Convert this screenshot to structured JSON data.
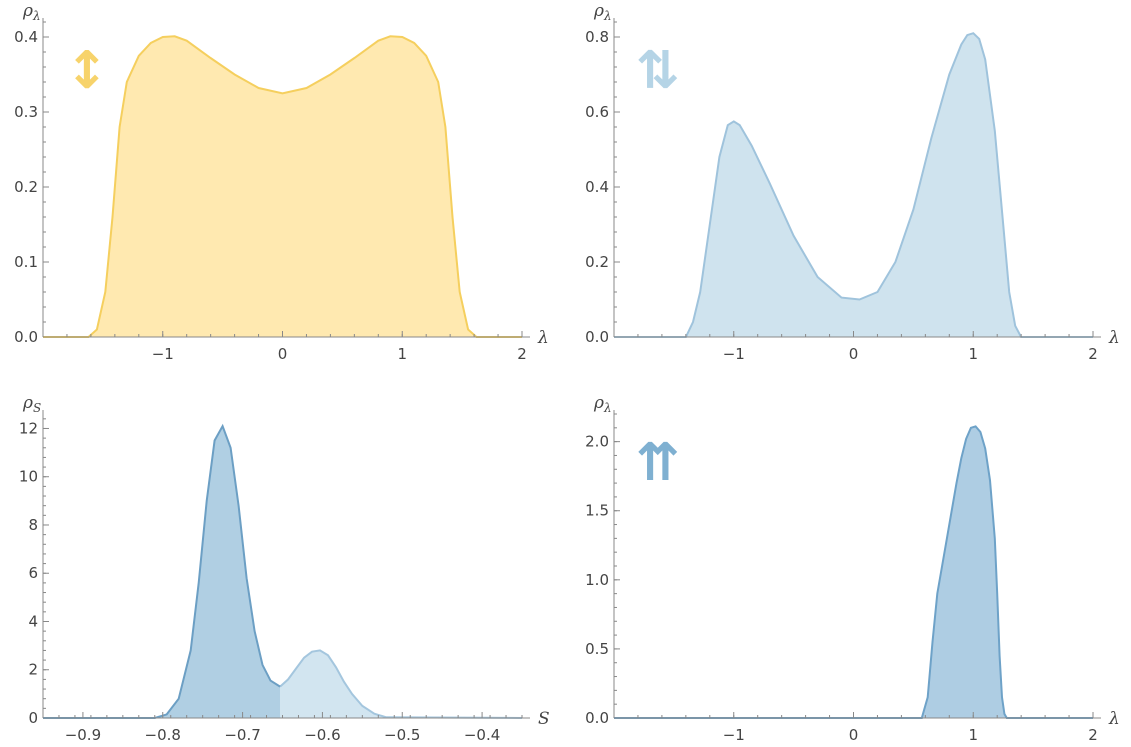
{
  "chart_data": [
    {
      "type": "area",
      "panel": "top-left",
      "xlabel": "λ",
      "ylabel": "ρ",
      "ylabel_sub": "λ",
      "xlim": [
        -2,
        2
      ],
      "ylim": [
        0,
        0.42
      ],
      "xticks": [
        -1,
        0,
        1,
        2
      ],
      "xtick_labels": [
        "−1",
        "0",
        "1",
        "2"
      ],
      "yticks": [
        0,
        0.1,
        0.2,
        0.3,
        0.4
      ],
      "ytick_labels": [
        "0.0",
        "0.1",
        "0.2",
        "0.3",
        "0.4"
      ],
      "legend_symbol": "↕",
      "legend_color": "#f7d36b",
      "fill_color": "#ffe9b0",
      "line_color": "#f5cf5e",
      "series": [
        {
          "x": [
            -2,
            -1.62,
            -1.55,
            -1.48,
            -1.42,
            -1.36,
            -1.3,
            -1.2,
            -1.1,
            -1.0,
            -0.9,
            -0.8,
            -0.6,
            -0.4,
            -0.2,
            0,
            0.2,
            0.4,
            0.6,
            0.8,
            0.9,
            1.0,
            1.1,
            1.2,
            1.3,
            1.36,
            1.42,
            1.48,
            1.55,
            1.62,
            2
          ],
          "values": [
            0,
            0,
            0.01,
            0.06,
            0.16,
            0.28,
            0.34,
            0.375,
            0.392,
            0.4,
            0.401,
            0.395,
            0.372,
            0.35,
            0.332,
            0.325,
            0.332,
            0.35,
            0.372,
            0.395,
            0.401,
            0.4,
            0.392,
            0.375,
            0.34,
            0.28,
            0.16,
            0.06,
            0.01,
            0,
            0
          ]
        }
      ]
    },
    {
      "type": "area",
      "panel": "top-right",
      "xlabel": "λ",
      "ylabel": "ρ",
      "ylabel_sub": "λ",
      "xlim": [
        -2,
        2
      ],
      "ylim": [
        0,
        0.84
      ],
      "xticks": [
        -1,
        0,
        1,
        2
      ],
      "xtick_labels": [
        "−1",
        "0",
        "1",
        "2"
      ],
      "yticks": [
        0,
        0.2,
        0.4,
        0.6,
        0.8
      ],
      "ytick_labels": [
        "0.0",
        "0.2",
        "0.4",
        "0.6",
        "0.8"
      ],
      "legend_symbol": "⇅",
      "legend_color": "#b5d4e6",
      "fill_color": "#cfe3ee",
      "line_color": "#9fc3dc",
      "series": [
        {
          "x": [
            -2,
            -1.4,
            -1.34,
            -1.28,
            -1.2,
            -1.12,
            -1.05,
            -1.0,
            -0.95,
            -0.85,
            -0.7,
            -0.5,
            -0.3,
            -0.1,
            0.05,
            0.2,
            0.35,
            0.5,
            0.65,
            0.8,
            0.9,
            0.95,
            1.0,
            1.05,
            1.1,
            1.18,
            1.25,
            1.3,
            1.35,
            1.4,
            2
          ],
          "values": [
            0,
            0,
            0.04,
            0.12,
            0.3,
            0.48,
            0.565,
            0.575,
            0.565,
            0.51,
            0.41,
            0.27,
            0.16,
            0.105,
            0.1,
            0.12,
            0.2,
            0.34,
            0.53,
            0.7,
            0.78,
            0.805,
            0.81,
            0.795,
            0.74,
            0.55,
            0.3,
            0.12,
            0.03,
            0,
            0
          ]
        }
      ]
    },
    {
      "type": "area",
      "panel": "bottom-left",
      "xlabel": "S",
      "ylabel": "ρ",
      "ylabel_sub": "S",
      "xlim": [
        -0.95,
        -0.35
      ],
      "ylim": [
        0,
        12.6
      ],
      "xticks": [
        -0.9,
        -0.8,
        -0.7,
        -0.6,
        -0.5,
        -0.4
      ],
      "xtick_labels": [
        "−0.9",
        "−0.8",
        "−0.7",
        "−0.6",
        "−0.5",
        "−0.4"
      ],
      "yticks": [
        0,
        2,
        4,
        6,
        8,
        10,
        12
      ],
      "ytick_labels": [
        "0",
        "2",
        "4",
        "6",
        "8",
        "10",
        "12"
      ],
      "split_x": -0.653,
      "fill_color": "#b0cfe3",
      "fill_color_secondary": "#d2e5f0",
      "line_color": "#6c9fc4",
      "line_color_secondary": "#a4c6de",
      "series": [
        {
          "x": [
            -0.95,
            -0.81,
            -0.795,
            -0.78,
            -0.765,
            -0.755,
            -0.745,
            -0.735,
            -0.725,
            -0.715,
            -0.705,
            -0.695,
            -0.685,
            -0.675,
            -0.665,
            -0.653,
            -0.643,
            -0.633,
            -0.623,
            -0.613,
            -0.603,
            -0.593,
            -0.583,
            -0.573,
            -0.563,
            -0.55,
            -0.535,
            -0.52,
            -0.35
          ],
          "values": [
            0,
            0,
            0.15,
            0.8,
            2.8,
            5.6,
            9.0,
            11.5,
            12.1,
            11.2,
            8.8,
            5.8,
            3.6,
            2.2,
            1.55,
            1.3,
            1.6,
            2.05,
            2.5,
            2.75,
            2.8,
            2.6,
            2.1,
            1.5,
            1.0,
            0.5,
            0.18,
            0.03,
            0
          ]
        }
      ]
    },
    {
      "type": "area",
      "panel": "bottom-right",
      "xlabel": "λ",
      "ylabel": "ρ",
      "ylabel_sub": "λ",
      "xlim": [
        -2,
        2
      ],
      "ylim": [
        0,
        2.2
      ],
      "xticks": [
        -1,
        0,
        1,
        2
      ],
      "xtick_labels": [
        "−1",
        "0",
        "1",
        "2"
      ],
      "yticks": [
        0,
        0.5,
        1,
        1.5,
        2
      ],
      "ytick_labels": [
        "0.0",
        "0.5",
        "1.0",
        "1.5",
        "2.0"
      ],
      "legend_symbol": "⇈",
      "legend_color": "#7fb0d1",
      "fill_color": "#aecde3",
      "line_color": "#6ea2c8",
      "series": [
        {
          "x": [
            -2,
            0.57,
            0.62,
            0.66,
            0.7,
            0.74,
            0.78,
            0.82,
            0.86,
            0.9,
            0.94,
            0.98,
            1.02,
            1.06,
            1.1,
            1.14,
            1.18,
            1.2,
            1.22,
            1.24,
            1.26,
            1.28,
            2
          ],
          "values": [
            0,
            0,
            0.15,
            0.55,
            0.9,
            1.1,
            1.3,
            1.5,
            1.7,
            1.88,
            2.02,
            2.1,
            2.11,
            2.07,
            1.95,
            1.72,
            1.3,
            0.9,
            0.45,
            0.15,
            0.03,
            0,
            0
          ]
        }
      ]
    }
  ]
}
